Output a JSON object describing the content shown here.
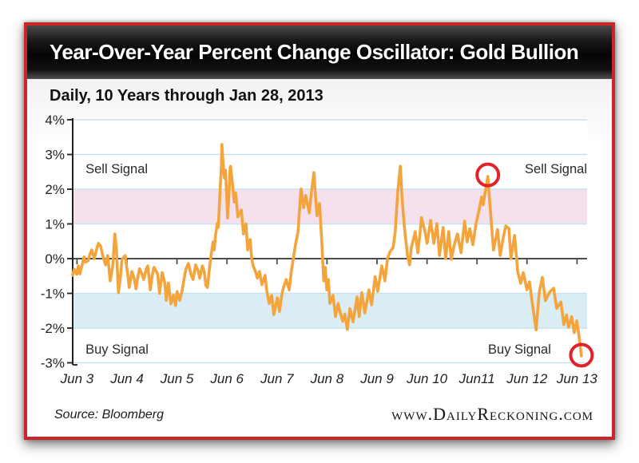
{
  "header": {
    "title": "Year-Over-Year Percent Change Oscillator: Gold Bullion"
  },
  "subtitle": "Daily, 10 Years through Jan 28, 2013",
  "footer": {
    "source": "Source: Bloomberg",
    "website": "www.DailyReckoning.com"
  },
  "colors": {
    "line": "#f4a43c",
    "sell_band": "#f5e1ee",
    "buy_band": "#daedf5",
    "gridline": "#c3e3ef",
    "zero_line": "#4d4d4f",
    "axis": "#231f20",
    "signal_circle": "#e0222a",
    "frame_border": "#c9252b",
    "text": "#231f20"
  },
  "chart_data": {
    "type": "line",
    "title": "Year-Over-Year Percent Change Oscillator: Gold Bullion",
    "subtitle": "Daily, 10 Years through Jan 28, 2013",
    "ylim": [
      -3,
      4
    ],
    "grid": true,
    "y_ticks": [
      4,
      3,
      2,
      1,
      0,
      -1,
      -2,
      -3
    ],
    "y_tick_labels": [
      "4%",
      "3%",
      "2%",
      "1%",
      "0%",
      "-1%",
      "-2%",
      "-3%"
    ],
    "x_tick_labels": [
      "Jun 3",
      "Jun 4",
      "Jun 5",
      "Jun 6",
      "Jun 7",
      "Jun 8",
      "Jun 9",
      "Jun 10",
      "Jun11",
      "Jun 12",
      "Jun 13"
    ],
    "zones": [
      {
        "name": "sell-zone",
        "from": 1,
        "to": 2,
        "color": "#f5e1ee"
      },
      {
        "name": "buy-zone",
        "from": -2,
        "to": -1,
        "color": "#daedf5"
      }
    ],
    "annotations": [
      {
        "name": "sell-signal-label-left",
        "text": "Sell Signal",
        "x": 0.025,
        "y": 2.6,
        "align": "left"
      },
      {
        "name": "sell-signal-label-right",
        "text": "Sell Signal",
        "x": 1.0,
        "y": 2.6,
        "align": "right"
      },
      {
        "name": "buy-signal-label-left",
        "text": "Buy Signal",
        "x": 0.025,
        "y": -2.6,
        "align": "left"
      },
      {
        "name": "buy-signal-label-right",
        "text": "Buy Signal",
        "x": 0.93,
        "y": -2.6,
        "align": "right"
      }
    ],
    "markers": [
      {
        "name": "sell-signal-circle",
        "x": 0.807,
        "y": 2.41,
        "radius_pct": 0.31
      },
      {
        "name": "buy-signal-circle",
        "x": 0.989,
        "y": -2.78,
        "radius_pct": 0.31
      }
    ],
    "series": [
      {
        "name": "Gold bullion year-over-year % change oscillator",
        "color": "#f4a43c",
        "points": [
          [
            0.0,
            -0.48
          ],
          [
            0.003,
            -0.3
          ],
          [
            0.008,
            -0.45
          ],
          [
            0.011,
            -0.21
          ],
          [
            0.014,
            -0.44
          ],
          [
            0.019,
            -0.15
          ],
          [
            0.022,
            0.05
          ],
          [
            0.025,
            -0.1
          ],
          [
            0.03,
            -0.06
          ],
          [
            0.033,
            0.1
          ],
          [
            0.037,
            0.25
          ],
          [
            0.042,
            0.0
          ],
          [
            0.047,
            0.3
          ],
          [
            0.05,
            0.44
          ],
          [
            0.054,
            0.37
          ],
          [
            0.059,
            0.05
          ],
          [
            0.064,
            -0.18
          ],
          [
            0.068,
            0.09
          ],
          [
            0.073,
            -0.64
          ],
          [
            0.078,
            -0.2
          ],
          [
            0.082,
            0.71
          ],
          [
            0.085,
            0.3
          ],
          [
            0.089,
            -0.98
          ],
          [
            0.093,
            -0.5
          ],
          [
            0.096,
            -0.02
          ],
          [
            0.102,
            0.09
          ],
          [
            0.107,
            -0.45
          ],
          [
            0.11,
            -0.83
          ],
          [
            0.115,
            -0.37
          ],
          [
            0.12,
            -0.6
          ],
          [
            0.123,
            -0.87
          ],
          [
            0.127,
            -0.5
          ],
          [
            0.13,
            -0.29
          ],
          [
            0.135,
            -0.45
          ],
          [
            0.138,
            -0.6
          ],
          [
            0.143,
            -0.3
          ],
          [
            0.146,
            -0.21
          ],
          [
            0.151,
            -0.9
          ],
          [
            0.155,
            -0.45
          ],
          [
            0.158,
            -0.25
          ],
          [
            0.165,
            -0.44
          ],
          [
            0.169,
            -1.0
          ],
          [
            0.174,
            -0.4
          ],
          [
            0.179,
            -0.7
          ],
          [
            0.182,
            -1.2
          ],
          [
            0.186,
            -0.7
          ],
          [
            0.191,
            -1.3
          ],
          [
            0.196,
            -1.05
          ],
          [
            0.2,
            -1.35
          ],
          [
            0.203,
            -0.95
          ],
          [
            0.208,
            -1.2
          ],
          [
            0.213,
            -0.9
          ],
          [
            0.217,
            -0.55
          ],
          [
            0.22,
            -0.3
          ],
          [
            0.225,
            -0.14
          ],
          [
            0.23,
            -0.45
          ],
          [
            0.234,
            -0.6
          ],
          [
            0.239,
            -0.18
          ],
          [
            0.244,
            -0.35
          ],
          [
            0.247,
            -0.56
          ],
          [
            0.252,
            -0.21
          ],
          [
            0.256,
            -0.4
          ],
          [
            0.259,
            -0.78
          ],
          [
            0.262,
            -0.83
          ],
          [
            0.267,
            -0.14
          ],
          [
            0.27,
            0.2
          ],
          [
            0.273,
            0.48
          ],
          [
            0.275,
            0.25
          ],
          [
            0.278,
            0.7
          ],
          [
            0.281,
            1.01
          ],
          [
            0.283,
            0.9
          ],
          [
            0.286,
            1.8
          ],
          [
            0.289,
            2.62
          ],
          [
            0.29,
            3.29
          ],
          [
            0.293,
            2.6
          ],
          [
            0.295,
            2.32
          ],
          [
            0.297,
            2.55
          ],
          [
            0.3,
            1.6
          ],
          [
            0.301,
            1.17
          ],
          [
            0.304,
            1.9
          ],
          [
            0.306,
            2.62
          ],
          [
            0.307,
            2.66
          ],
          [
            0.311,
            2.1
          ],
          [
            0.314,
            1.63
          ],
          [
            0.317,
            1.89
          ],
          [
            0.321,
            1.2
          ],
          [
            0.328,
            1.4
          ],
          [
            0.332,
            0.71
          ],
          [
            0.337,
            1.0
          ],
          [
            0.34,
            0.25
          ],
          [
            0.345,
            0.55
          ],
          [
            0.348,
            0.0
          ],
          [
            0.351,
            -0.21
          ],
          [
            0.356,
            -0.4
          ],
          [
            0.359,
            -0.56
          ],
          [
            0.363,
            -0.37
          ],
          [
            0.368,
            -0.75
          ],
          [
            0.374,
            -0.48
          ],
          [
            0.377,
            -0.9
          ],
          [
            0.382,
            -1.29
          ],
          [
            0.387,
            -1.06
          ],
          [
            0.391,
            -1.61
          ],
          [
            0.398,
            -1.13
          ],
          [
            0.402,
            -1.52
          ],
          [
            0.407,
            -1.0
          ],
          [
            0.41,
            -0.83
          ],
          [
            0.415,
            -0.6
          ],
          [
            0.421,
            -0.9
          ],
          [
            0.425,
            -0.37
          ],
          [
            0.43,
            0.1
          ],
          [
            0.433,
            0.4
          ],
          [
            0.438,
            0.78
          ],
          [
            0.441,
            1.4
          ],
          [
            0.444,
            2.01
          ],
          [
            0.449,
            1.47
          ],
          [
            0.453,
            1.82
          ],
          [
            0.46,
            1.32
          ],
          [
            0.464,
            1.9
          ],
          [
            0.469,
            2.48
          ],
          [
            0.472,
            1.8
          ],
          [
            0.475,
            1.24
          ],
          [
            0.48,
            1.59
          ],
          [
            0.484,
            0.55
          ],
          [
            0.488,
            -0.64
          ],
          [
            0.491,
            -0.25
          ],
          [
            0.494,
            -0.9
          ],
          [
            0.497,
            -0.6
          ],
          [
            0.5,
            -1.29
          ],
          [
            0.506,
            -1.06
          ],
          [
            0.511,
            -1.67
          ],
          [
            0.516,
            -1.29
          ],
          [
            0.52,
            -1.55
          ],
          [
            0.525,
            -1.8
          ],
          [
            0.529,
            -1.6
          ],
          [
            0.534,
            -2.04
          ],
          [
            0.539,
            -1.44
          ],
          [
            0.545,
            -1.82
          ],
          [
            0.553,
            -1.1
          ],
          [
            0.557,
            -1.67
          ],
          [
            0.562,
            -0.98
          ],
          [
            0.568,
            -1.56
          ],
          [
            0.576,
            -0.9
          ],
          [
            0.581,
            -1.33
          ],
          [
            0.588,
            -0.52
          ],
          [
            0.593,
            -0.94
          ],
          [
            0.601,
            -0.21
          ],
          [
            0.607,
            -0.64
          ],
          [
            0.612,
            0.0
          ],
          [
            0.617,
            0.2
          ],
          [
            0.623,
            0.32
          ],
          [
            0.627,
            0.78
          ],
          [
            0.632,
            1.93
          ],
          [
            0.637,
            2.66
          ],
          [
            0.64,
            1.8
          ],
          [
            0.643,
            1.24
          ],
          [
            0.646,
            0.74
          ],
          [
            0.651,
            0.09
          ],
          [
            0.655,
            -0.18
          ],
          [
            0.658,
            0.3
          ],
          [
            0.663,
            0.6
          ],
          [
            0.666,
            0.78
          ],
          [
            0.671,
            0.17
          ],
          [
            0.675,
            0.7
          ],
          [
            0.678,
            1.18
          ],
          [
            0.685,
            0.78
          ],
          [
            0.689,
            0.44
          ],
          [
            0.696,
            1.1
          ],
          [
            0.702,
            0.44
          ],
          [
            0.708,
            1.01
          ],
          [
            0.713,
            0.09
          ],
          [
            0.72,
            0.9
          ],
          [
            0.725,
            0.0
          ],
          [
            0.731,
            0.78
          ],
          [
            0.736,
            -0.02
          ],
          [
            0.742,
            0.4
          ],
          [
            0.748,
            0.71
          ],
          [
            0.755,
            0.17
          ],
          [
            0.762,
            1.08
          ],
          [
            0.767,
            0.48
          ],
          [
            0.772,
            0.86
          ],
          [
            0.778,
            0.4
          ],
          [
            0.784,
            1.0
          ],
          [
            0.79,
            1.4
          ],
          [
            0.795,
            1.78
          ],
          [
            0.798,
            1.55
          ],
          [
            0.803,
            2.0
          ],
          [
            0.807,
            2.37
          ],
          [
            0.81,
            1.8
          ],
          [
            0.814,
            1.01
          ],
          [
            0.818,
            0.25
          ],
          [
            0.826,
            0.84
          ],
          [
            0.831,
            0.09
          ],
          [
            0.837,
            0.6
          ],
          [
            0.842,
            0.94
          ],
          [
            0.848,
            0.87
          ],
          [
            0.852,
            0.0
          ],
          [
            0.859,
            0.67
          ],
          [
            0.863,
            0.0
          ],
          [
            0.865,
            -0.37
          ],
          [
            0.871,
            -0.71
          ],
          [
            0.876,
            -0.4
          ],
          [
            0.883,
            -0.9
          ],
          [
            0.888,
            -0.67
          ],
          [
            0.894,
            -1.33
          ],
          [
            0.901,
            -2.05
          ],
          [
            0.907,
            -0.98
          ],
          [
            0.913,
            -0.54
          ],
          [
            0.919,
            -1.21
          ],
          [
            0.924,
            -1.05
          ],
          [
            0.928,
            -0.95
          ],
          [
            0.935,
            -0.85
          ],
          [
            0.941,
            -1.43
          ],
          [
            0.949,
            -1.25
          ],
          [
            0.955,
            -1.9
          ],
          [
            0.96,
            -1.62
          ],
          [
            0.964,
            -1.98
          ],
          [
            0.97,
            -1.67
          ],
          [
            0.975,
            -2.13
          ],
          [
            0.98,
            -1.79
          ],
          [
            0.984,
            -2.2
          ],
          [
            0.989,
            -2.8
          ]
        ]
      }
    ],
    "legend": null
  }
}
